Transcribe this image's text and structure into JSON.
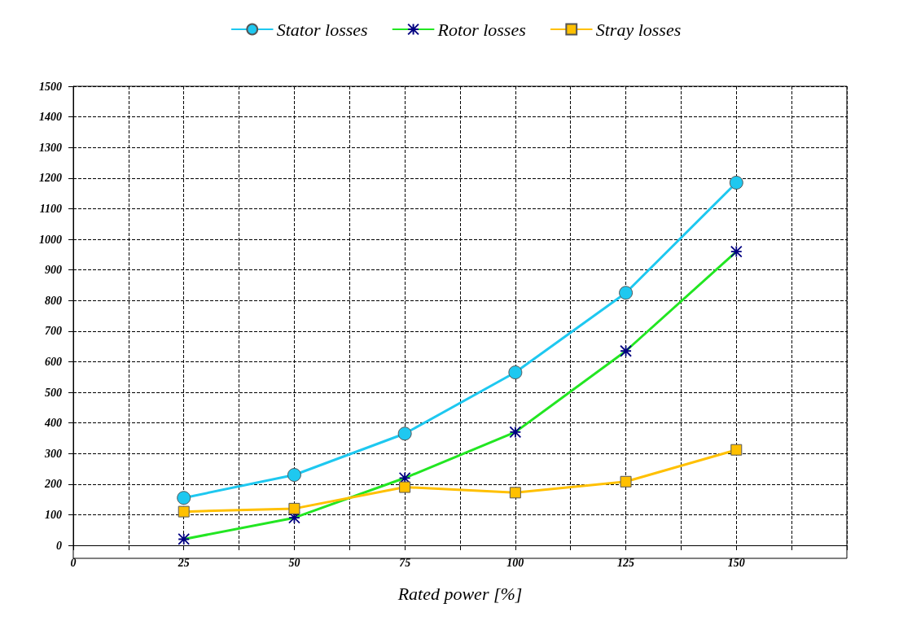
{
  "chart_data": {
    "type": "line",
    "xlabel": "Rated power [%]",
    "x": [
      25,
      50,
      75,
      100,
      125,
      150
    ],
    "series": [
      {
        "name": "Stator losses",
        "color": "#1ec8f0",
        "marker": "circle",
        "values": [
          155,
          230,
          365,
          565,
          825,
          1185
        ]
      },
      {
        "name": "Rotor losses",
        "color": "#22e622",
        "marker": "cross",
        "values": [
          20,
          90,
          220,
          370,
          635,
          960
        ]
      },
      {
        "name": "Stray losses",
        "color": "#ffc000",
        "marker": "square",
        "values": [
          110,
          120,
          190,
          172,
          208,
          312
        ]
      }
    ],
    "xlim": [
      0,
      175
    ],
    "xticks": [
      0,
      {
        "value": 12.5,
        "label": null
      },
      25,
      {
        "value": 37.5,
        "label": null
      },
      50,
      {
        "value": 62.5,
        "label": null
      },
      75,
      {
        "value": 87.5,
        "label": null
      },
      100,
      {
        "value": 112.5,
        "label": null
      },
      125,
      {
        "value": 137.5,
        "label": null
      },
      150,
      {
        "value": 162.5,
        "label": null
      },
      {
        "value": 175,
        "label": null
      }
    ],
    "ylim": [
      0,
      1500
    ],
    "yticks": [
      0,
      100,
      200,
      300,
      400,
      500,
      600,
      700,
      800,
      900,
      1000,
      1100,
      1200,
      1300,
      1400,
      1500
    ],
    "grid": true,
    "legend": "top",
    "line_style": "solid"
  }
}
